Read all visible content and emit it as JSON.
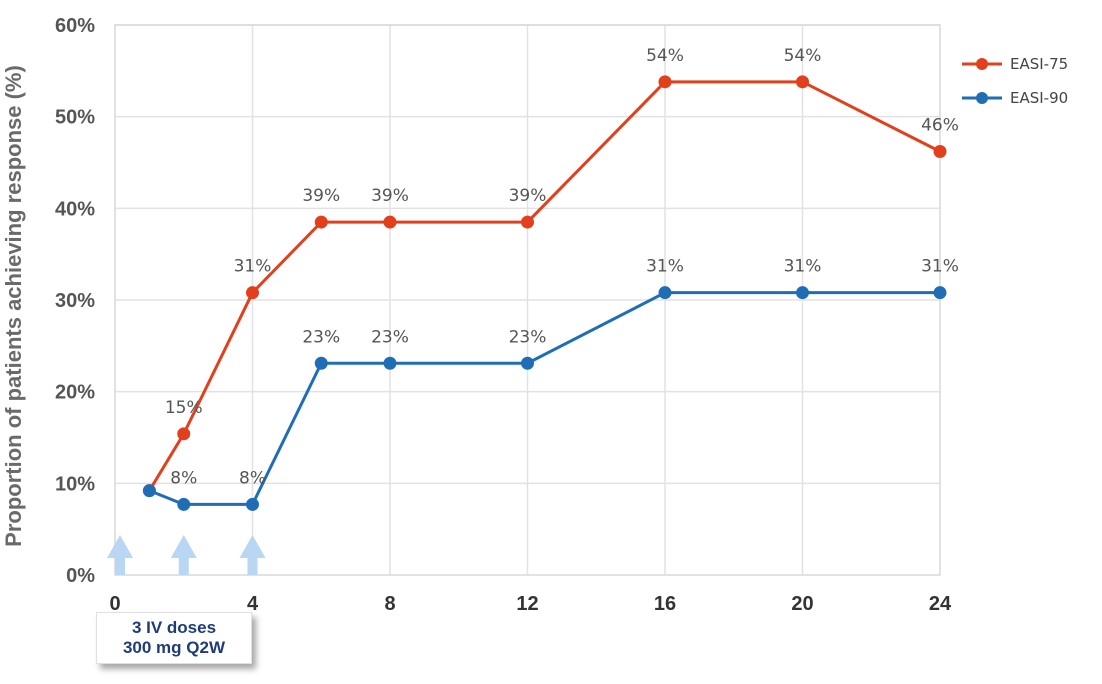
{
  "chart_data": {
    "type": "line",
    "ylabel": "Proportion of patients achieving response (%)",
    "xlabel": "",
    "ylim": [
      0,
      60
    ],
    "xlim": [
      0,
      24
    ],
    "y_ticks": [
      0,
      10,
      20,
      30,
      40,
      50,
      60
    ],
    "y_tick_labels": [
      "0%",
      "10%",
      "20%",
      "30%",
      "40%",
      "50%",
      "60%"
    ],
    "x_ticks": [
      0,
      4,
      8,
      12,
      16,
      20,
      24
    ],
    "x_tick_labels": [
      "0",
      "4",
      "8",
      "12",
      "16",
      "20",
      "24"
    ],
    "grid": true,
    "legend_position": "top-right",
    "series": [
      {
        "name": "EASI-75",
        "color": "#e2401c",
        "x": [
          1,
          2,
          4,
          6,
          8,
          12,
          16,
          20,
          24
        ],
        "y": [
          9.2,
          15.4,
          30.8,
          38.5,
          38.5,
          38.5,
          53.8,
          53.8,
          46.2
        ],
        "labels": [
          "",
          "15%",
          "31%",
          "39%",
          "39%",
          "39%",
          "54%",
          "54%",
          "46%"
        ]
      },
      {
        "name": "EASI-90",
        "color": "#1f6eb5",
        "x": [
          1,
          2,
          4,
          6,
          8,
          12,
          16,
          20,
          24
        ],
        "y": [
          9.2,
          7.7,
          7.7,
          23.1,
          23.1,
          23.1,
          30.8,
          30.8,
          30.8
        ],
        "labels": [
          "",
          "8%",
          "8%",
          "23%",
          "23%",
          "23%",
          "31%",
          "31%",
          "31%"
        ]
      }
    ],
    "dose_arrows_x": [
      0,
      2,
      4
    ],
    "dose_arrow_color": "#b9d6f2",
    "dose_box": {
      "line1": "3 IV doses",
      "line2": "300 mg Q2W"
    }
  }
}
